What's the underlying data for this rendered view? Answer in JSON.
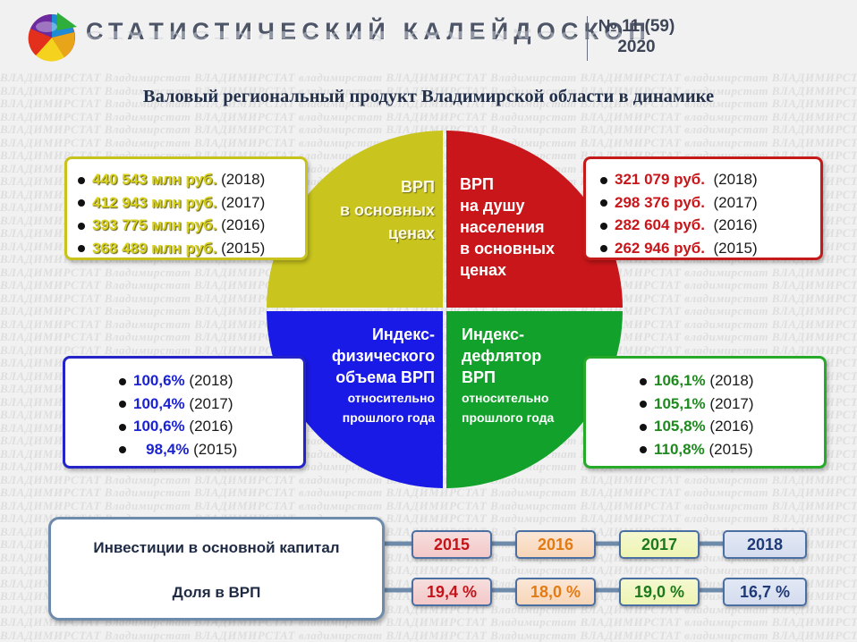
{
  "header": {
    "title": "СТАТИСТИЧЕСКИЙ КАЛЕЙДОСКОП",
    "issue": "№ 11 (59)",
    "year": "2020",
    "logo_icon": "pie-chart-logo-icon"
  },
  "background_watermark": "ВЛАДИМИРСТАТ Владимирстат ВЛАДИМИРСТАТ владимирстат",
  "page_title": "Валовый региональный продукт Владимирской области в динамике",
  "quadrants": {
    "top_left": {
      "lines": [
        "ВРП",
        "в основных",
        "ценах"
      ],
      "color": "#c9c51e"
    },
    "top_right": {
      "lines": [
        "ВРП",
        "на душу",
        "населения",
        "в основных",
        "ценах"
      ],
      "color": "#c8161a"
    },
    "bottom_left": {
      "lines": [
        "Индекс-",
        "физического",
        "объема ВРП"
      ],
      "sub": [
        "относительно",
        "прошлого года"
      ],
      "color": "#1a1ae6"
    },
    "bottom_right": {
      "lines": [
        "Индекс-",
        "дефлятор",
        "ВРП"
      ],
      "sub": [
        "относительно",
        "прошлого года"
      ],
      "color": "#12a12a"
    }
  },
  "boxes": {
    "grp_total": [
      {
        "value": "440 543 млн руб.",
        "year": "(2018)"
      },
      {
        "value": "412 943 млн руб.",
        "year": "(2017)"
      },
      {
        "value": "393 775 млн руб.",
        "year": "(2016)"
      },
      {
        "value": "368 489 млн руб.",
        "year": "(2015)"
      }
    ],
    "grp_per_capita": [
      {
        "value": "321 079 руб.",
        "year": "(2018)"
      },
      {
        "value": "298 376 руб.",
        "year": "(2017)"
      },
      {
        "value": "282 604 руб.",
        "year": "(2016)"
      },
      {
        "value": "262 946 руб.",
        "year": "(2015)"
      }
    ],
    "volume_index": [
      {
        "value": "100,6%",
        "year": "(2018)"
      },
      {
        "value": "100,4%",
        "year": "(2017)"
      },
      {
        "value": "100,6%",
        "year": "(2016)"
      },
      {
        "value": "98,4%",
        "year": "(2015)"
      }
    ],
    "deflator_index": [
      {
        "value": "106,1%",
        "year": "(2018)"
      },
      {
        "value": "105,1%",
        "year": "(2017)"
      },
      {
        "value": "105,8%",
        "year": "(2016)"
      },
      {
        "value": "110,8%",
        "year": "(2015)"
      }
    ]
  },
  "investments": {
    "label_1": "Инвестиции в основной капитал",
    "label_2": "Доля в ВРП",
    "years": [
      "2015",
      "2016",
      "2017",
      "2018"
    ],
    "shares": [
      "19,4 %",
      "18,0 %",
      "19,0 %",
      "16,7 %"
    ]
  }
}
